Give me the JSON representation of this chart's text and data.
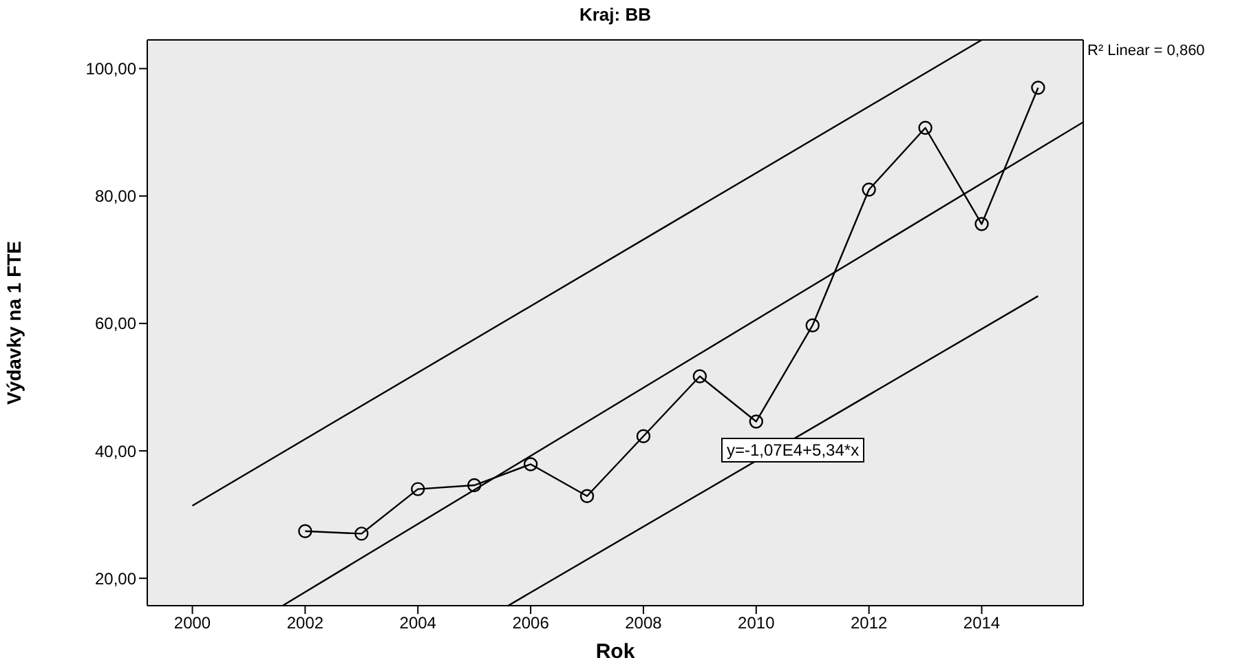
{
  "chart_data": {
    "type": "line",
    "title": "Kraj: BB",
    "xlabel": "Rok",
    "ylabel": "Výdavky na 1 FTE",
    "xlim": [
      1999.2,
      2015.8
    ],
    "xticks": [
      2000,
      2002,
      2004,
      2006,
      2008,
      2010,
      2012,
      2014
    ],
    "ylim": [
      15.7,
      104.5
    ],
    "yticks": [
      {
        "value": 20,
        "label": "20,00"
      },
      {
        "value": 40,
        "label": "40,00"
      },
      {
        "value": 60,
        "label": "60,00"
      },
      {
        "value": 80,
        "label": "80,00"
      },
      {
        "value": 100,
        "label": "100,00"
      }
    ],
    "grid": false,
    "line_style": "solid",
    "annotations": [
      "R² Linear = 0,860",
      "y=-1,07E4+5,34*x"
    ],
    "series": [
      {
        "color": "#000000",
        "marker": "circle",
        "x": [
          2002,
          2003,
          2004,
          2005,
          2006,
          2007,
          2008,
          2009,
          2010,
          2011,
          2012,
          2013,
          2014,
          2015
        ],
        "values": [
          27.4,
          27.0,
          34.0,
          34.6,
          37.9,
          32.9,
          42.3,
          51.7,
          44.6,
          59.7,
          81.0,
          90.7,
          75.6,
          97.0
        ]
      },
      {
        "type": "line",
        "color": "#000000",
        "marker": "none",
        "x": [
          2001.6,
          2015.8
        ],
        "values": [
          15.7,
          91.6
        ]
      },
      {
        "type": "line",
        "color": "#000000",
        "marker": "none",
        "x": [
          2000,
          2014
        ],
        "values": [
          31.4,
          104.5
        ]
      },
      {
        "type": "line",
        "color": "#000000",
        "marker": "none",
        "x": [
          2005.6,
          2015
        ],
        "values": [
          15.7,
          64.3
        ]
      }
    ]
  }
}
